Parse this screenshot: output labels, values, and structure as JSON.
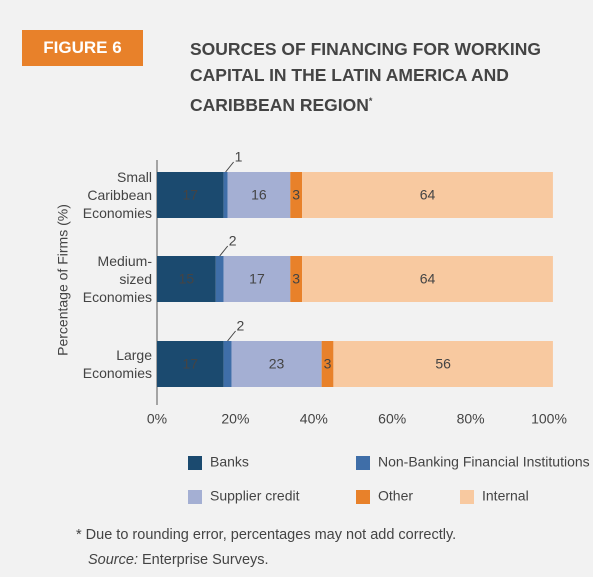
{
  "figure_label": "FIGURE 6",
  "chart_data": {
    "type": "stacked_barh",
    "title": "SOURCES OF FINANCING FOR WORKING CAPITAL IN THE LATIN AMERICA AND CARIBBEAN REGION",
    "title_marker": "*",
    "y_label": "Percentage of Firms (%)",
    "categories": [
      "Small Caribbean Economies",
      "Medium-sized Economies",
      "Large Economies"
    ],
    "series": [
      {
        "name": "Banks",
        "color": "#1b4a6f",
        "values": [
          17,
          15,
          17
        ]
      },
      {
        "name": "Non-Banking Financial Institutions",
        "color": "#3f6ea8",
        "values": [
          1,
          2,
          2
        ]
      },
      {
        "name": "Supplier credit",
        "color": "#a4afd3",
        "values": [
          16,
          17,
          23
        ]
      },
      {
        "name": "Other",
        "color": "#e8812a",
        "values": [
          3,
          3,
          3
        ]
      },
      {
        "name": "Internal",
        "color": "#f8c9a0",
        "values": [
          64,
          64,
          56
        ]
      }
    ],
    "xlim": [
      0,
      100
    ],
    "xticks": [
      {
        "value": 0,
        "label": "0%"
      },
      {
        "value": 20,
        "label": "20%"
      },
      {
        "value": 40,
        "label": "40%"
      },
      {
        "value": 60,
        "label": "60%"
      },
      {
        "value": 80,
        "label": "80%"
      },
      {
        "value": 100,
        "label": "100%"
      }
    ],
    "footnote": "* Due to rounding error, percentages may not add correctly.",
    "source_label": "Source:",
    "source": "Enterprise Surveys."
  }
}
